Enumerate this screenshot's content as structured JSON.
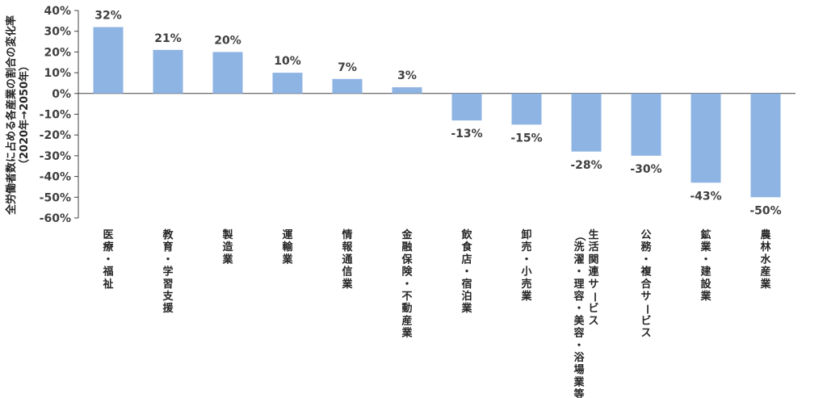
{
  "chart_data": {
    "type": "bar",
    "ylabel": [
      "全労働者数に占める各産業の割合の変化率",
      "（2020年→2050年）"
    ],
    "ylim": [
      -60,
      40
    ],
    "yticks": [
      40,
      30,
      20,
      10,
      0,
      -10,
      -20,
      -30,
      -40,
      -50,
      -60
    ],
    "ytick_labels": [
      "40%",
      "30%",
      "20%",
      "10%",
      "0%",
      "-10%",
      "-20%",
      "-30%",
      "-40%",
      "-50%",
      "-60%"
    ],
    "categories": [
      [
        "医療・福祉"
      ],
      [
        "教育・学習支援"
      ],
      [
        "製造業"
      ],
      [
        "運輸業"
      ],
      [
        "情報通信業"
      ],
      [
        "金融保険・不動産業"
      ],
      [
        "飲食店・宿泊業"
      ],
      [
        "卸売・小売業"
      ],
      [
        "生活関連サービス",
        "（洗濯・理容・美容・浴場業等）"
      ],
      [
        "公務・複合サービス"
      ],
      [
        "鉱業・建設業"
      ],
      [
        "農林水産業"
      ]
    ],
    "values": [
      32,
      21,
      20,
      10,
      7,
      3,
      -13,
      -15,
      -28,
      -30,
      -43,
      -50
    ],
    "data_labels": [
      "32%",
      "21%",
      "20%",
      "10%",
      "7%",
      "3%",
      "-13%",
      "-15%",
      "-28%",
      "-30%",
      "-43%",
      "-50%"
    ],
    "colors": {
      "bar": "#8eb4e3",
      "axis": "#404040",
      "text": "#404040"
    },
    "grid": false,
    "legend": "none"
  }
}
